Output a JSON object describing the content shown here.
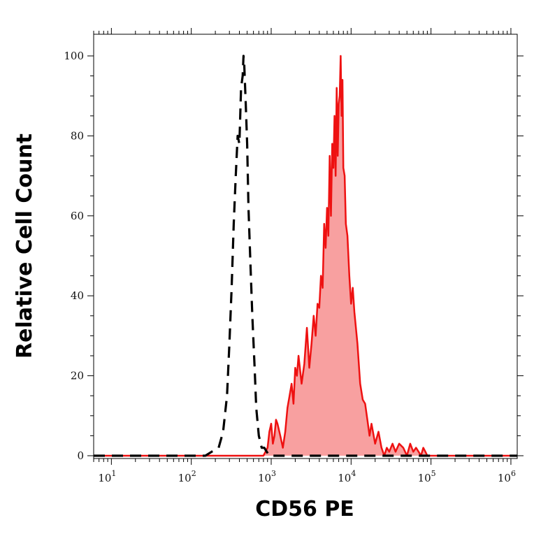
{
  "chart_data": {
    "type": "area",
    "xlabel": "CD56 PE",
    "ylabel": "Relative Cell Count",
    "x_scale": "log",
    "xlim": [
      6,
      1200000
    ],
    "ylim": [
      0,
      100
    ],
    "x_ticks": [
      {
        "value": 10,
        "base": "10",
        "exp": "1"
      },
      {
        "value": 100,
        "base": "10",
        "exp": "2"
      },
      {
        "value": 1000,
        "base": "10",
        "exp": "3"
      },
      {
        "value": 10000,
        "base": "10",
        "exp": "4"
      },
      {
        "value": 100000,
        "base": "10",
        "exp": "5"
      },
      {
        "value": 1000000,
        "base": "10",
        "exp": "6"
      }
    ],
    "y_ticks": [
      {
        "value": 0,
        "label": "0"
      },
      {
        "value": 20,
        "label": "20"
      },
      {
        "value": 40,
        "label": "40"
      },
      {
        "value": 60,
        "label": "60"
      },
      {
        "value": 80,
        "label": "80"
      },
      {
        "value": 100,
        "label": "100"
      }
    ],
    "grid": false,
    "legend": "none",
    "series": [
      {
        "style": "dashed-line",
        "color": "#000000",
        "x": [
          6,
          150,
          180,
          220,
          250,
          280,
          300,
          320,
          340,
          360,
          380,
          400,
          420,
          440,
          450,
          460,
          480,
          500,
          520,
          550,
          580,
          620,
          650,
          700,
          760,
          820,
          880,
          950,
          1000,
          1200000
        ],
        "y": [
          0,
          0,
          1,
          2,
          6,
          15,
          28,
          42,
          58,
          70,
          80,
          78,
          92,
          95,
          100,
          98,
          88,
          78,
          62,
          48,
          35,
          22,
          12,
          5,
          2,
          2,
          1,
          0,
          0,
          0
        ]
      },
      {
        "style": "filled-line",
        "color": "#ee1111",
        "fill": "#f8a0a0",
        "x": [
          6,
          800,
          900,
          950,
          1000,
          1050,
          1100,
          1150,
          1200,
          1300,
          1400,
          1500,
          1600,
          1700,
          1800,
          1900,
          2000,
          2100,
          2200,
          2400,
          2600,
          2800,
          3000,
          3200,
          3400,
          3600,
          3800,
          4000,
          4200,
          4400,
          4600,
          4800,
          5000,
          5200,
          5400,
          5600,
          5800,
          6000,
          6200,
          6400,
          6600,
          6800,
          7000,
          7200,
          7400,
          7600,
          7800,
          8000,
          8300,
          8600,
          9000,
          9500,
          10000,
          10500,
          11000,
          12000,
          13000,
          14000,
          15000,
          16000,
          17000,
          18000,
          20000,
          22000,
          24000,
          26000,
          28000,
          30000,
          33000,
          36000,
          40000,
          45000,
          50000,
          55000,
          60000,
          65000,
          70000,
          75000,
          80000,
          85000,
          90000,
          1200000
        ],
        "y": [
          0,
          0,
          2,
          6,
          8,
          3,
          5,
          9,
          8,
          5,
          2,
          6,
          12,
          15,
          18,
          13,
          22,
          20,
          25,
          18,
          23,
          32,
          22,
          28,
          35,
          30,
          38,
          37,
          45,
          42,
          58,
          52,
          62,
          55,
          75,
          60,
          78,
          72,
          85,
          70,
          92,
          75,
          88,
          90,
          100,
          85,
          94,
          72,
          70,
          58,
          55,
          45,
          38,
          42,
          36,
          28,
          18,
          14,
          13,
          9,
          5,
          8,
          3,
          6,
          2,
          0,
          2,
          1,
          3,
          1,
          3,
          2,
          0,
          3,
          1,
          2,
          1,
          0,
          2,
          1,
          0,
          0
        ]
      }
    ]
  }
}
